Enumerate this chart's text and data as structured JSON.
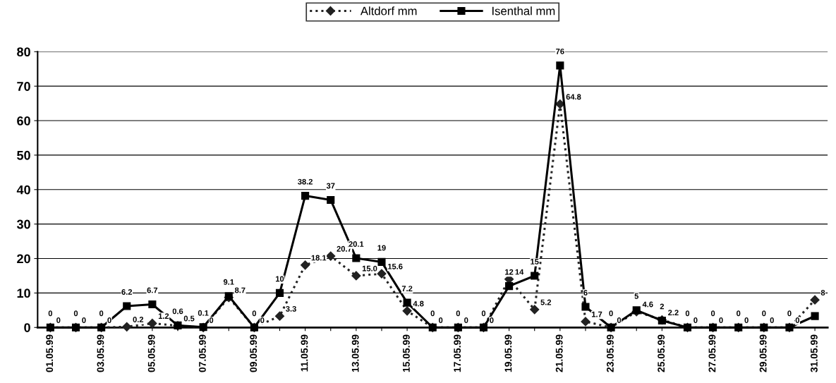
{
  "chart_data": {
    "type": "line",
    "categories": [
      "01.05.99",
      null,
      "03.05.99",
      null,
      "05.05.99",
      null,
      "07.05.99",
      null,
      "09.05.99",
      null,
      "11.05.99",
      null,
      "13.05.99",
      null,
      "15.05.99",
      null,
      "17.05.99",
      null,
      "19.05.99",
      null,
      "21.05.99",
      null,
      "23.05.99",
      null,
      "25.05.99",
      null,
      "27.05.99",
      null,
      "29.05.99",
      null,
      "31.05.99"
    ],
    "series": [
      {
        "name": "Altdorf mm",
        "color": "#222222",
        "marker": "diamond",
        "line_style": "dotted",
        "values": [
          0,
          0,
          0,
          0.2,
          1.2,
          0.5,
          0,
          8.7,
          0,
          3.3,
          18.1,
          20.7,
          15.0,
          15.6,
          4.8,
          0,
          0,
          0,
          14,
          5.2,
          64.8,
          1.7,
          0,
          4.6,
          2.2,
          0,
          0,
          0,
          0,
          0,
          8
        ],
        "value_labels": [
          "0",
          "0",
          "0",
          "0.2",
          "1.2",
          "0.5",
          "0",
          "8.7",
          "0",
          "3.3",
          "18.1",
          "20.7",
          "15.0",
          "15.6",
          "4.8",
          "0",
          "0",
          "0",
          "14",
          "5.2",
          "64.8",
          "1.7",
          "0",
          "4.6",
          "2.2",
          "0",
          "0",
          "0",
          "0",
          "0",
          "8"
        ]
      },
      {
        "name": "Isenthal mm",
        "color": "#000000",
        "marker": "square",
        "line_style": "solid",
        "values": [
          0,
          0,
          0,
          6.2,
          6.7,
          0.6,
          0.1,
          9.1,
          0,
          10,
          38.2,
          37,
          20.1,
          19,
          7.2,
          0,
          0,
          0,
          12,
          15,
          76,
          6,
          0,
          5,
          2,
          0,
          0,
          0,
          0,
          0,
          3.3
        ],
        "value_labels": [
          "0",
          "0",
          "0",
          "6.2",
          "6.7",
          "0.6",
          "0.1",
          "9.1",
          "0",
          "10",
          "38.2",
          "37",
          "20.1",
          "19",
          "7.2",
          "0",
          "0",
          "0",
          "12",
          "15",
          "76",
          "6",
          "0",
          "5",
          "2",
          "0",
          "0",
          "0",
          "0",
          "0",
          null
        ]
      }
    ],
    "ylim": [
      0,
      80
    ],
    "yticks": [
      0,
      10,
      20,
      30,
      40,
      50,
      60,
      70,
      80
    ],
    "grid": "y",
    "legend": "top"
  }
}
